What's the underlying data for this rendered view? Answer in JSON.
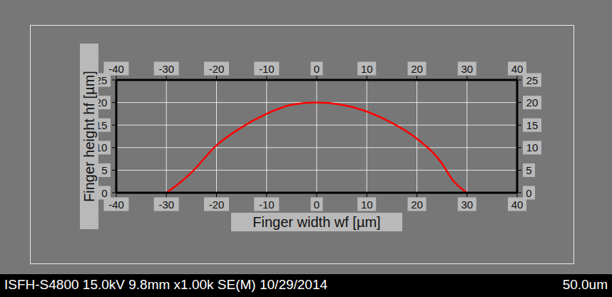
{
  "chart_data": {
    "type": "line",
    "x_label": "Finger width wf [µm]",
    "y_label": "Finger height hf [µm]",
    "x": [
      -30,
      -27,
      -25,
      -20,
      -15,
      -10,
      -5,
      0,
      5,
      10,
      15,
      20,
      25,
      27,
      30
    ],
    "values": [
      0,
      2.5,
      4.5,
      10.5,
      14.5,
      17.5,
      19.5,
      20,
      19.5,
      18,
      15.5,
      12,
      6.5,
      3,
      0
    ],
    "color": "#ff0000",
    "xlim": [
      -40,
      40
    ],
    "xticks": [
      -40,
      -30,
      -20,
      -10,
      0,
      10,
      20,
      30,
      40
    ],
    "ylim": [
      0,
      25
    ],
    "yticks": [
      0,
      5,
      10,
      15,
      20,
      25
    ],
    "grid": true,
    "annotations": [
      "ISFH-S4800 15.0kV 9.8mm x1.00k SE(M) 10/29/2014",
      "50.0um"
    ]
  }
}
